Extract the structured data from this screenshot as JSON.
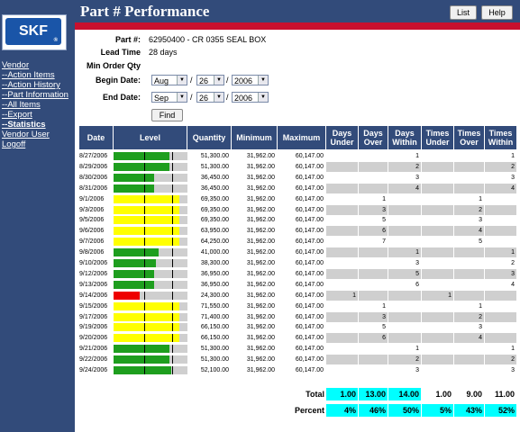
{
  "page": {
    "title": "Part # Performance",
    "buttons": [
      "List",
      "Help"
    ]
  },
  "logo": {
    "text": "SKF",
    "mark": "®"
  },
  "sidebar": {
    "items": [
      {
        "label": "Vendor",
        "bold": false
      },
      {
        "label": "--Action Items",
        "bold": false
      },
      {
        "label": "--Action History",
        "bold": false
      },
      {
        "label": "--Part Information",
        "bold": false
      },
      {
        "label": "--All Items",
        "bold": false
      },
      {
        "label": "--Export",
        "bold": false
      },
      {
        "label": "--Statistics",
        "bold": true
      },
      {
        "label": "Vendor User",
        "bold": false
      },
      {
        "label": "Logoff",
        "bold": false
      }
    ]
  },
  "form": {
    "part_label": "Part #:",
    "part_value": "62950400 - CR 0355 SEAL BOX",
    "lead_label": "Lead Time",
    "lead_value": "28 days",
    "minorder_label": "Min Order Qty",
    "begin_label": "Begin Date:",
    "begin": {
      "month": "Aug",
      "day": "26",
      "year": "2006"
    },
    "end_label": "End Date:",
    "end": {
      "month": "Sep",
      "day": "26",
      "year": "2006"
    },
    "find_label": "Find"
  },
  "table": {
    "headers": [
      "Date",
      "Level",
      "Quantity",
      "Minimum",
      "Maximum",
      "Days Under",
      "Days Over",
      "Days Within",
      "Times Under",
      "Times Over",
      "Times Within"
    ],
    "rows": [
      {
        "date": "8/27/2006",
        "status": "within",
        "level": 0.85,
        "quantity": "51,300.00",
        "minimum": "31,962.00",
        "maximum": "60,147.00",
        "du": "",
        "do": "",
        "dw": "1",
        "tu": "",
        "to": "",
        "tw": "1"
      },
      {
        "date": "8/29/2006",
        "status": "within",
        "level": 0.85,
        "quantity": "51,300.00",
        "minimum": "31,962.00",
        "maximum": "60,147.00",
        "du": "",
        "do": "",
        "dw": "2",
        "tu": "",
        "to": "",
        "tw": "2"
      },
      {
        "date": "8/30/2006",
        "status": "within",
        "level": 0.61,
        "quantity": "36,450.00",
        "minimum": "31,962.00",
        "maximum": "60,147.00",
        "du": "",
        "do": "",
        "dw": "3",
        "tu": "",
        "to": "",
        "tw": "3"
      },
      {
        "date": "8/31/2006",
        "status": "within",
        "level": 0.61,
        "quantity": "36,450.00",
        "minimum": "31,962.00",
        "maximum": "60,147.00",
        "du": "",
        "do": "",
        "dw": "4",
        "tu": "",
        "to": "",
        "tw": "4"
      },
      {
        "date": "9/1/2006",
        "status": "over",
        "level": 1.0,
        "quantity": "69,350.00",
        "minimum": "31,962.00",
        "maximum": "60,147.00",
        "du": "",
        "do": "1",
        "dw": "",
        "tu": "",
        "to": "1",
        "tw": ""
      },
      {
        "date": "9/3/2006",
        "status": "over",
        "level": 1.0,
        "quantity": "69,350.00",
        "minimum": "31,962.00",
        "maximum": "60,147.00",
        "du": "",
        "do": "3",
        "dw": "",
        "tu": "",
        "to": "2",
        "tw": ""
      },
      {
        "date": "9/5/2006",
        "status": "over",
        "level": 1.0,
        "quantity": "69,350.00",
        "minimum": "31,962.00",
        "maximum": "60,147.00",
        "du": "",
        "do": "5",
        "dw": "",
        "tu": "",
        "to": "3",
        "tw": ""
      },
      {
        "date": "9/6/2006",
        "status": "over",
        "level": 1.0,
        "quantity": "63,950.00",
        "minimum": "31,962.00",
        "maximum": "60,147.00",
        "du": "",
        "do": "6",
        "dw": "",
        "tu": "",
        "to": "4",
        "tw": ""
      },
      {
        "date": "9/7/2006",
        "status": "over",
        "level": 1.0,
        "quantity": "64,250.00",
        "minimum": "31,962.00",
        "maximum": "60,147.00",
        "du": "",
        "do": "7",
        "dw": "",
        "tu": "",
        "to": "5",
        "tw": ""
      },
      {
        "date": "9/8/2006",
        "status": "within",
        "level": 0.68,
        "quantity": "41,000.00",
        "minimum": "31,962.00",
        "maximum": "60,147.00",
        "du": "",
        "do": "",
        "dw": "1",
        "tu": "",
        "to": "",
        "tw": "1"
      },
      {
        "date": "9/10/2006",
        "status": "within",
        "level": 0.64,
        "quantity": "38,300.00",
        "minimum": "31,962.00",
        "maximum": "60,147.00",
        "du": "",
        "do": "",
        "dw": "3",
        "tu": "",
        "to": "",
        "tw": "2"
      },
      {
        "date": "9/12/2006",
        "status": "within",
        "level": 0.61,
        "quantity": "36,950.00",
        "minimum": "31,962.00",
        "maximum": "60,147.00",
        "du": "",
        "do": "",
        "dw": "5",
        "tu": "",
        "to": "",
        "tw": "3"
      },
      {
        "date": "9/13/2006",
        "status": "within",
        "level": 0.61,
        "quantity": "36,950.00",
        "minimum": "31,962.00",
        "maximum": "60,147.00",
        "du": "",
        "do": "",
        "dw": "6",
        "tu": "",
        "to": "",
        "tw": "4"
      },
      {
        "date": "9/14/2006",
        "status": "under",
        "level": 0.4,
        "quantity": "24,300.00",
        "minimum": "31,962.00",
        "maximum": "60,147.00",
        "du": "1",
        "do": "",
        "dw": "",
        "tu": "1",
        "to": "",
        "tw": ""
      },
      {
        "date": "9/15/2006",
        "status": "over",
        "level": 1.0,
        "quantity": "71,550.00",
        "minimum": "31,962.00",
        "maximum": "60,147.00",
        "du": "",
        "do": "1",
        "dw": "",
        "tu": "",
        "to": "1",
        "tw": ""
      },
      {
        "date": "9/17/2006",
        "status": "over",
        "level": 1.0,
        "quantity": "71,400.00",
        "minimum": "31,962.00",
        "maximum": "60,147.00",
        "du": "",
        "do": "3",
        "dw": "",
        "tu": "",
        "to": "2",
        "tw": ""
      },
      {
        "date": "9/19/2006",
        "status": "over",
        "level": 1.0,
        "quantity": "66,150.00",
        "minimum": "31,962.00",
        "maximum": "60,147.00",
        "du": "",
        "do": "5",
        "dw": "",
        "tu": "",
        "to": "3",
        "tw": ""
      },
      {
        "date": "9/20/2006",
        "status": "over",
        "level": 1.0,
        "quantity": "66,150.00",
        "minimum": "31,962.00",
        "maximum": "60,147.00",
        "du": "",
        "do": "6",
        "dw": "",
        "tu": "",
        "to": "4",
        "tw": ""
      },
      {
        "date": "9/21/2006",
        "status": "within",
        "level": 0.85,
        "quantity": "51,300.00",
        "minimum": "31,962.00",
        "maximum": "60,147.00",
        "du": "",
        "do": "",
        "dw": "1",
        "tu": "",
        "to": "",
        "tw": "1"
      },
      {
        "date": "9/22/2006",
        "status": "within",
        "level": 0.85,
        "quantity": "51,300.00",
        "minimum": "31,962.00",
        "maximum": "60,147.00",
        "du": "",
        "do": "",
        "dw": "2",
        "tu": "",
        "to": "",
        "tw": "2"
      },
      {
        "date": "9/24/2006",
        "status": "within",
        "level": 0.87,
        "quantity": "52,100.00",
        "minimum": "31,962.00",
        "maximum": "60,147.00",
        "du": "",
        "do": "",
        "dw": "3",
        "tu": "",
        "to": "",
        "tw": "3"
      }
    ],
    "total_label": "Total",
    "totals": [
      "1.00",
      "13.00",
      "14.00",
      "1.00",
      "9.00",
      "11.00"
    ],
    "percent_label": "Percent",
    "percents": [
      "4%",
      "46%",
      "50%",
      "5%",
      "43%",
      "52%"
    ]
  },
  "colors": {
    "navy": "#324b7a",
    "red": "#c8102e",
    "within": "#1e9e1e",
    "over": "#ffff00",
    "under": "#ee0000",
    "row_alt": "#cfcfcf",
    "highlight": "#00ffff"
  }
}
